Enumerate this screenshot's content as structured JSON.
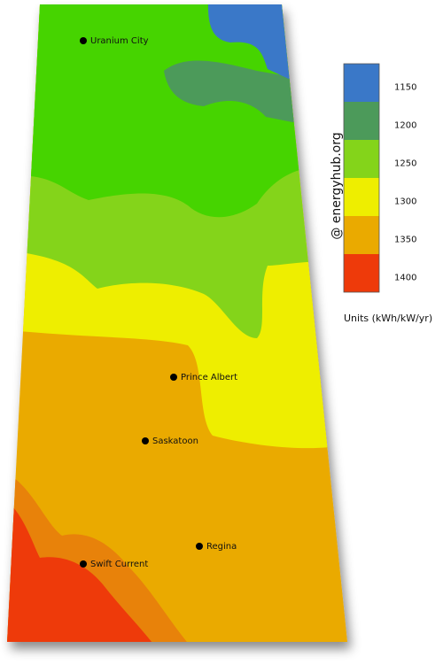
{
  "cities": [
    {
      "name": "Uranium City"
    },
    {
      "name": "Prince Albert"
    },
    {
      "name": "Saskatoon"
    },
    {
      "name": "Regina"
    },
    {
      "name": "Swift Current"
    }
  ],
  "legend": {
    "title": "Units (kWh/kW/yr)",
    "items": [
      {
        "label": 1150,
        "color": "#3a78c8"
      },
      {
        "label": 1200,
        "color": "#4c9a5a"
      },
      {
        "label": 1250,
        "color": "#84d41a"
      },
      {
        "label": 1300,
        "color": "#eeee00"
      },
      {
        "label": 1350,
        "color": "#eaaa00"
      },
      {
        "label": 1400,
        "color": "#ee3a0a"
      }
    ]
  },
  "credit": "@ energyhub.org"
}
